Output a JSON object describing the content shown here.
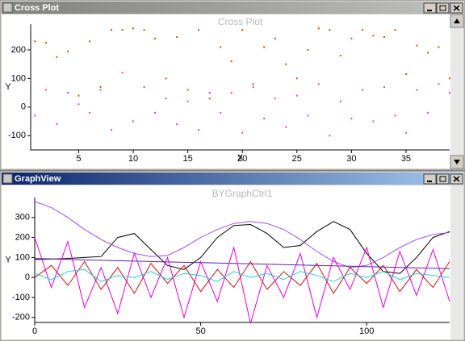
{
  "windows": [
    {
      "title": "Cross Plot"
    },
    {
      "title": "GraphView"
    }
  ],
  "chart_data": [
    {
      "type": "scatter",
      "title": "Cross Plot",
      "x_label": "X",
      "y_label": "Y",
      "xlim": [
        0.6,
        39
      ],
      "ylim": [
        -150,
        290
      ],
      "xticks": [
        5,
        10,
        15,
        20,
        25,
        30,
        35
      ],
      "yticks": [
        -100,
        0,
        100,
        200
      ],
      "series": [
        {
          "color": "#c85a00",
          "x": [
            1,
            2,
            3,
            4,
            5,
            6,
            7,
            8,
            9,
            10,
            11,
            12,
            13,
            14,
            15,
            16,
            17,
            18,
            19,
            20,
            21,
            22,
            23,
            24,
            25,
            26,
            27,
            28,
            29,
            30,
            31,
            32,
            33,
            34,
            35,
            36,
            37,
            38,
            39
          ],
          "values": [
            230,
            225,
            175,
            195,
            40,
            230,
            70,
            270,
            270,
            275,
            270,
            240,
            100,
            245,
            60,
            270,
            30,
            210,
            160,
            270,
            80,
            210,
            240,
            150,
            100,
            200,
            275,
            270,
            180,
            240,
            270,
            250,
            245,
            270,
            115,
            215,
            190,
            210,
            100
          ]
        },
        {
          "color": "#e040e0",
          "x": [
            1,
            2,
            3,
            4,
            5,
            6,
            7,
            8,
            9,
            10,
            11,
            12,
            13,
            14,
            15,
            16,
            17,
            18,
            19,
            20,
            21,
            22,
            23,
            24,
            25,
            26,
            27,
            28,
            29,
            30,
            31,
            32,
            33,
            34,
            35,
            36,
            37,
            38,
            39
          ],
          "values": [
            -30,
            60,
            -60,
            50,
            10,
            -20,
            60,
            -80,
            120,
            -50,
            70,
            -20,
            30,
            -60,
            20,
            -80,
            50,
            -20,
            50,
            -90,
            70,
            -40,
            30,
            -70,
            40,
            -30,
            80,
            -100,
            20,
            -40,
            60,
            -50,
            70,
            -30,
            -90,
            60,
            -20,
            80,
            50
          ]
        }
      ]
    },
    {
      "type": "line",
      "title": "BYGraphCtrl1",
      "y_label": "Y",
      "xlim": [
        0,
        125
      ],
      "ylim": [
        -225,
        400
      ],
      "xticks": [
        0,
        50,
        100
      ],
      "yticks": [
        -200,
        -100,
        0,
        100,
        200,
        300
      ],
      "x": [
        0,
        5,
        10,
        15,
        20,
        25,
        30,
        35,
        40,
        45,
        50,
        55,
        60,
        65,
        70,
        75,
        80,
        85,
        90,
        95,
        100,
        105,
        110,
        115,
        120,
        125
      ],
      "series": [
        {
          "color": "#000000",
          "values": [
            90,
            92,
            95,
            100,
            105,
            200,
            220,
            140,
            60,
            40,
            100,
            200,
            260,
            265,
            220,
            150,
            160,
            230,
            280,
            240,
            120,
            30,
            20,
            100,
            200,
            230
          ]
        },
        {
          "color": "#a050e0",
          "values": [
            380,
            350,
            300,
            240,
            190,
            150,
            120,
            105,
            110,
            150,
            200,
            240,
            270,
            280,
            270,
            240,
            190,
            130,
            80,
            50,
            60,
            100,
            150,
            190,
            215,
            225
          ]
        },
        {
          "color": "#6020a0",
          "values": [
            95,
            93,
            90,
            88,
            86,
            84,
            82,
            80,
            78,
            76,
            74,
            72,
            70,
            68,
            66,
            64,
            62,
            60,
            58,
            56,
            54,
            52,
            50,
            48,
            46,
            44
          ]
        },
        {
          "color": "#e000e0",
          "values": [
            200,
            -50,
            180,
            -150,
            50,
            -180,
            120,
            -100,
            100,
            -200,
            80,
            -120,
            150,
            -230,
            60,
            -100,
            120,
            -200,
            100,
            -60,
            150,
            -150,
            130,
            -90,
            140,
            -120
          ]
        },
        {
          "color": "#d01010",
          "values": [
            0,
            60,
            -40,
            80,
            -60,
            50,
            -80,
            70,
            -30,
            60,
            -70,
            40,
            -50,
            80,
            -60,
            30,
            -40,
            70,
            -80,
            50,
            -30,
            60,
            -70,
            40,
            -50,
            80
          ]
        },
        {
          "color": "#20d0e0",
          "values": [
            20,
            -10,
            30,
            40,
            -20,
            10,
            0,
            30,
            -10,
            20,
            10,
            -20,
            30,
            0,
            20,
            -10,
            30,
            10,
            -20,
            20,
            0,
            30,
            -10,
            20,
            10,
            0
          ]
        }
      ]
    }
  ]
}
